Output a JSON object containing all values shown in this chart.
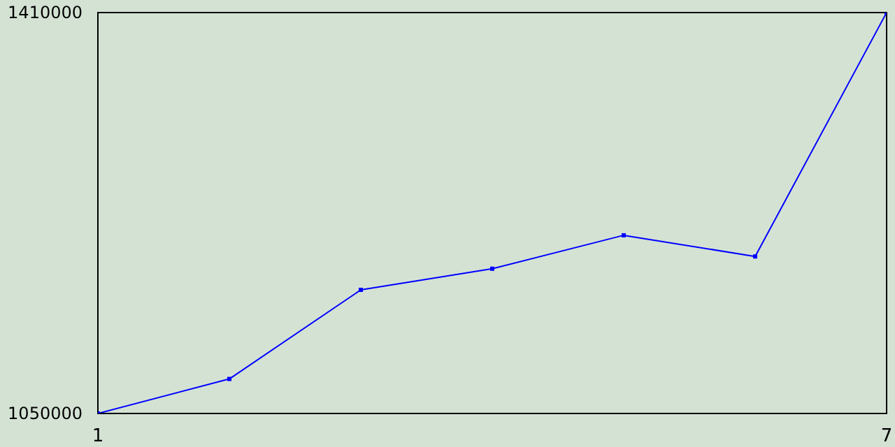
{
  "chart_data": {
    "type": "line",
    "x": [
      1,
      2,
      3,
      4,
      5,
      6,
      7
    ],
    "series": [
      {
        "color": "#0000ff",
        "values": [
          1050000,
          1081000,
          1161000,
          1180000,
          1210000,
          1191000,
          1410000
        ]
      }
    ],
    "xlim": [
      1,
      7
    ],
    "xticks": [
      1,
      7
    ],
    "ylim": [
      1050000,
      1410000
    ],
    "yticks": [
      1050000,
      1410000
    ],
    "marker": "square",
    "line_style": "solid"
  }
}
